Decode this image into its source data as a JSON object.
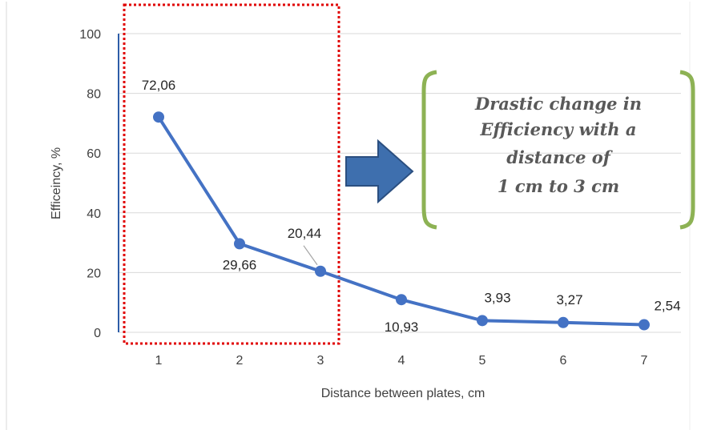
{
  "chart_data": {
    "type": "line",
    "x": [
      1,
      2,
      3,
      4,
      5,
      6,
      7
    ],
    "values": [
      72.06,
      29.66,
      20.44,
      10.93,
      3.93,
      3.27,
      2.54
    ],
    "data_labels": [
      "72,06",
      "29,66",
      "20,44",
      "10,93",
      "3,93",
      "3,27",
      "2,54"
    ],
    "xlabel": "Distance between plates, cm",
    "ylabel": "Efficeincy, %",
    "x_ticks": [
      "1",
      "2",
      "3",
      "4",
      "5",
      "6",
      "7"
    ],
    "y_ticks": [
      "0",
      "20",
      "40",
      "60",
      "80",
      "100"
    ],
    "ylim": [
      0,
      100
    ],
    "grid": "horizontal",
    "line_color": "#4472c4",
    "annotation": {
      "lines": [
        "Drastic change in",
        "Efficiency with a",
        "distance of",
        "1 cm to 3 cm"
      ],
      "highlight_range": [
        1,
        3
      ],
      "highlight_color": "#e00000",
      "bracket_color": "#8db254",
      "arrow_color": "#3e6fae"
    }
  }
}
